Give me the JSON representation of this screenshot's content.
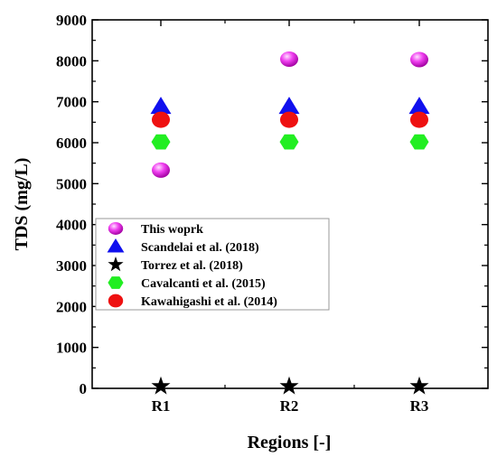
{
  "chart_data": {
    "type": "scatter",
    "title": "",
    "xlabel": "Regions [-]",
    "ylabel": "TDS (mg/L)",
    "categories": [
      "R1",
      "R2",
      "R3"
    ],
    "ylim": [
      0,
      9000
    ],
    "yticks": [
      "0",
      "1000",
      "2000",
      "3000",
      "4000",
      "5000",
      "6000",
      "7000",
      "8000",
      "9000"
    ],
    "grid": false,
    "legend_position": "lower-left",
    "series": [
      {
        "name": "This woprk",
        "marker": "sphere",
        "color": "#ee33ee",
        "values": [
          5330,
          8040,
          8030
        ]
      },
      {
        "name": "Scandelai et al. (2018)",
        "marker": "triangle",
        "color": "#1010ee",
        "values": [
          6880,
          6880,
          6880
        ]
      },
      {
        "name": "Torrez et al. (2018)",
        "marker": "star",
        "color": "#000000",
        "values": [
          50,
          50,
          50
        ]
      },
      {
        "name": "Cavalcanti et al. (2015)",
        "marker": "hexagon",
        "color": "#22ee22",
        "values": [
          6020,
          6020,
          6020
        ]
      },
      {
        "name": "Kawahigashi et al. (2014)",
        "marker": "circle",
        "color": "#ee1111",
        "values": [
          6560,
          6560,
          6560
        ]
      }
    ]
  }
}
